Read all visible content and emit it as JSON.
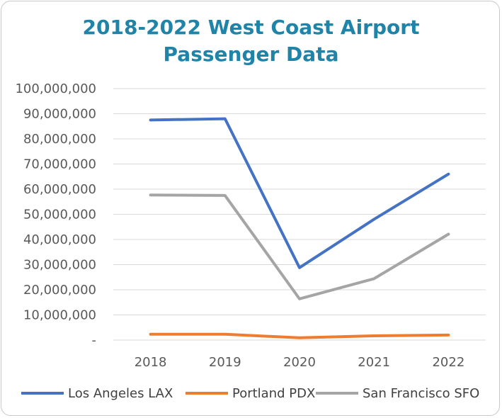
{
  "chart_data": {
    "type": "line",
    "title_line1": "2018-2022 West Coast Airport",
    "title_line2": "Passenger Data",
    "categories": [
      "2018",
      "2019",
      "2020",
      "2021",
      "2022"
    ],
    "y_ticks": [
      {
        "value": 0,
        "label": "-"
      },
      {
        "value": 10000000,
        "label": "10,000,000"
      },
      {
        "value": 20000000,
        "label": "20,000,000"
      },
      {
        "value": 30000000,
        "label": "30,000,000"
      },
      {
        "value": 40000000,
        "label": "40,000,000"
      },
      {
        "value": 50000000,
        "label": "50,000,000"
      },
      {
        "value": 60000000,
        "label": "60,000,000"
      },
      {
        "value": 70000000,
        "label": "70,000,000"
      },
      {
        "value": 80000000,
        "label": "80,000,000"
      },
      {
        "value": 90000000,
        "label": "90,000,000"
      },
      {
        "value": 100000000,
        "label": "100,000,000"
      }
    ],
    "ylim": [
      0,
      100000000
    ],
    "grid": true,
    "legend_position": "bottom",
    "series": [
      {
        "name": "Los Angeles LAX",
        "color": "#4472c4",
        "values": [
          87500000,
          88000000,
          28800000,
          48000000,
          66000000
        ]
      },
      {
        "name": "Portland PDX",
        "color": "#ed7d31",
        "values": [
          2300000,
          2300000,
          900000,
          1700000,
          2000000
        ]
      },
      {
        "name": "San Francisco SFO",
        "color": "#a5a5a5",
        "values": [
          57700000,
          57500000,
          16400000,
          24400000,
          42100000
        ]
      }
    ]
  }
}
